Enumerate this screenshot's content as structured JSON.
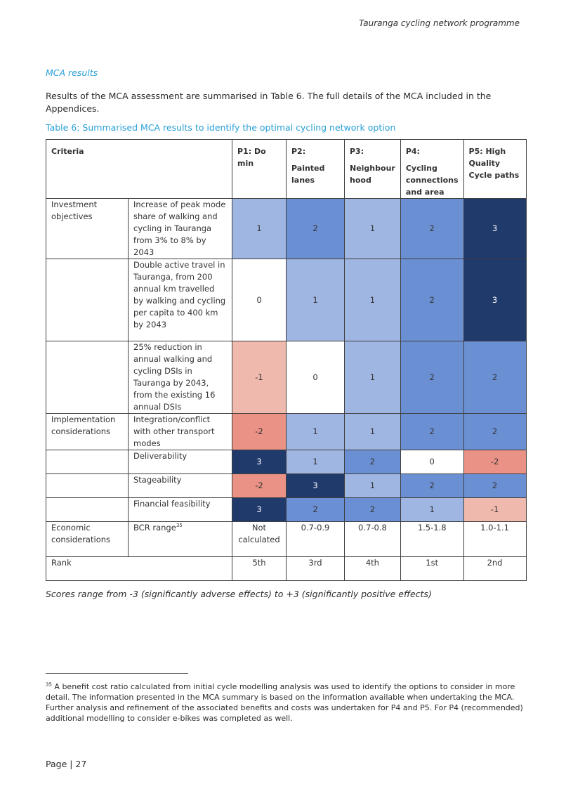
{
  "header": {
    "doc_title": "Tauranga cycling network programme"
  },
  "section": {
    "heading": "MCA results"
  },
  "intro": {
    "text": "Results of the MCA assessment are summarised in Table 6.  The full details of the MCA included in the Appendices."
  },
  "table": {
    "caption": "Table 6: Summarised MCA results to identify the optimal cycling network option",
    "headers": {
      "criteria": "Criteria",
      "p1": "P1: Do min",
      "p2_line1": "P2:",
      "p2_line2": "Painted lanes",
      "p3_line1": "P3:",
      "p3_line2": "Neighbour hood",
      "p4_line1": "P4:",
      "p4_line2": "Cycling connections and area",
      "p5": "P5: High Quality Cycle paths"
    },
    "categories": {
      "investment": "Investment objectives",
      "implementation": "Implementation considerations",
      "economic": "Economic considerations"
    },
    "rows": {
      "r1": {
        "label": "Increase of peak mode share of walking and cycling in Tauranga from 3% to 8% by 2043",
        "scores": [
          "1",
          "2",
          "1",
          "2",
          "3"
        ]
      },
      "r2": {
        "label": "Double active travel in Tauranga, from 200 annual km travelled by walking and cycling per capita to 400 km by 2043",
        "scores": [
          "0",
          "1",
          "1",
          "2",
          "3"
        ]
      },
      "r3": {
        "label": "25% reduction in annual walking and cycling DSIs in Tauranga by 2043, from the existing 16 annual DSIs",
        "scores": [
          "-1",
          "0",
          "1",
          "2",
          "2"
        ]
      },
      "r4": {
        "label": "Integration/conflict with other transport modes",
        "scores": [
          "-2",
          "1",
          "1",
          "2",
          "2"
        ]
      },
      "r5": {
        "label": "Deliverability",
        "scores": [
          "3",
          "1",
          "2",
          "0",
          "-2"
        ]
      },
      "r6": {
        "label": "Stageability",
        "scores": [
          "-2",
          "3",
          "1",
          "2",
          "2"
        ]
      },
      "r7": {
        "label": "Financial feasibility",
        "scores": [
          "3",
          "2",
          "2",
          "1",
          "-1"
        ]
      }
    },
    "bcr": {
      "label": "BCR range",
      "footnote_ref": "35",
      "values": [
        "Not calculated",
        "0.7-0.9",
        "0.7-0.8",
        "1.5-1.8",
        "1.0-1.1"
      ]
    },
    "rank": {
      "label": "Rank",
      "values": [
        "5th",
        "3rd",
        "4th",
        "1st",
        "2nd"
      ]
    },
    "colors": {
      "minus2": "#ea9285",
      "minus1": "#f0b9ad",
      "zero": "#ffffff",
      "plus1": "#9fb5e2",
      "plus2": "#6b8fd3",
      "plus3": "#213a6c"
    }
  },
  "scores_note": "Scores range from -3 (significantly adverse effects) to +3 (significantly positive effects)",
  "footnote": {
    "number": "35",
    "text": "A benefit cost ratio calculated from initial cycle modelling analysis was used to identify the options to consider in more detail. The information presented in the MCA summary is based on the information available when undertaking the MCA. Further analysis and refinement of the associated benefits and costs was undertaken for P4 and P5. For P4 (recommended) additional modelling to consider e-bikes was completed as well."
  },
  "footer": {
    "page_label": "Page | 27"
  }
}
